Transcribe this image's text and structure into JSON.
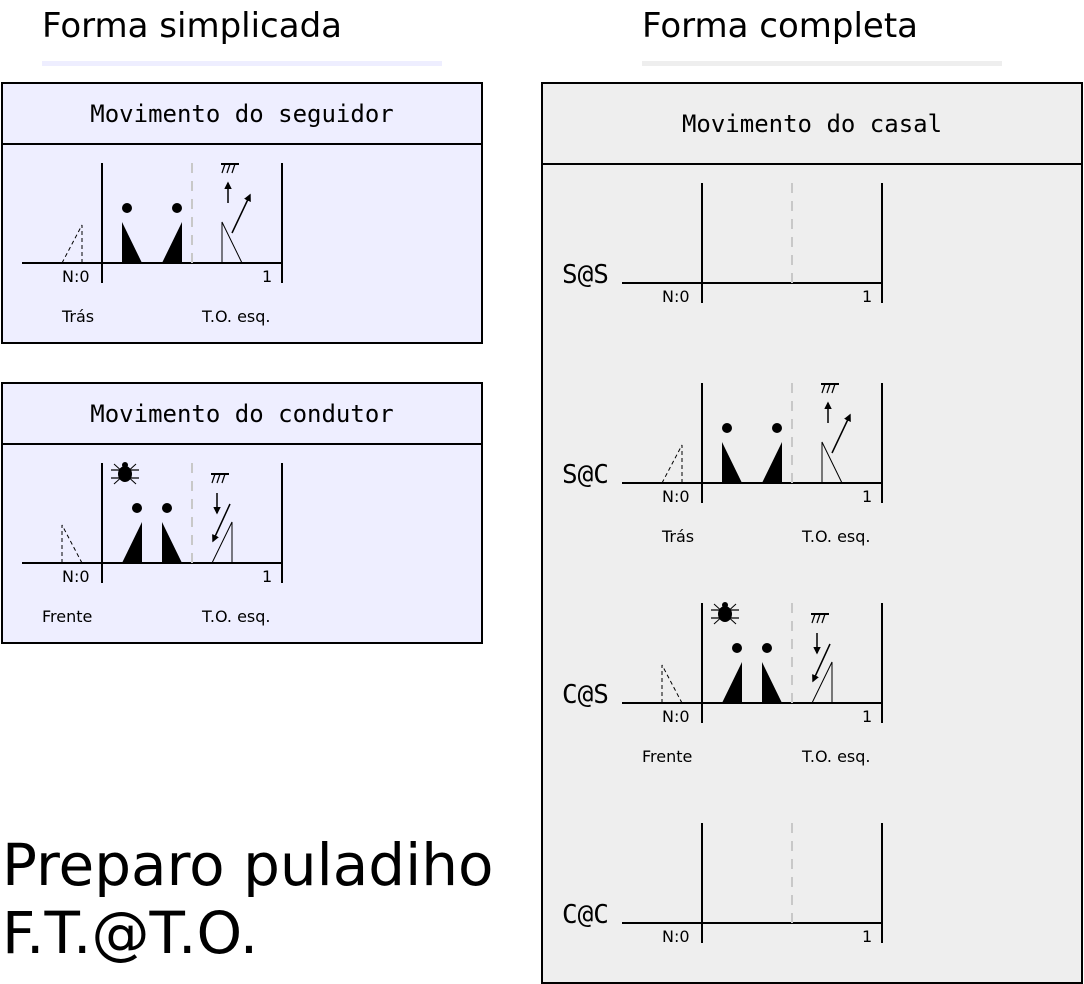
{
  "header": {
    "left_title": "Forma simplicada",
    "right_title": "Forma completa"
  },
  "colors": {
    "left_panel_bg": "#eeeeff",
    "right_panel_bg": "#eeeeee",
    "left_underline": "#eeeeff",
    "right_underline": "#eeeeee",
    "divider": "#c8c8c8"
  },
  "panels": {
    "follower_title": "Movimento do seguidor",
    "leader_title": "Movimento do condutor",
    "couple_title": "Movimento do casal"
  },
  "scale": {
    "start": "N:0",
    "end": "1"
  },
  "labels": {
    "tras": "Trás",
    "frente": "Frente",
    "to_esq": "T.O. esq."
  },
  "rows": [
    "S@S",
    "S@C",
    "C@S",
    "C@C"
  ],
  "footer": {
    "line1": "Preparo puladiho",
    "line2": "F.T.@T.O."
  }
}
